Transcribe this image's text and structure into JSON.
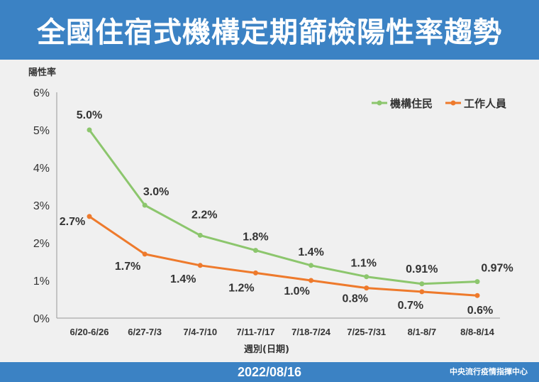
{
  "header": {
    "title": "全國住宿式機構定期篩檢陽性率趨勢"
  },
  "footer": {
    "date": "2022/08/16",
    "source": "中央流行疫情指揮中心"
  },
  "colors": {
    "header_bg": "#3b82c4",
    "residents": "#8cc66d",
    "workers": "#ee7a2c"
  },
  "chart_data": {
    "type": "line",
    "ylabel": "陽性率",
    "xlabel": "週別(日期)",
    "ylim": [
      0,
      6
    ],
    "yticks": [
      "0%",
      "1%",
      "2%",
      "3%",
      "4%",
      "5%",
      "6%"
    ],
    "categories": [
      "6/20-6/26",
      "6/27-7/3",
      "7/4-7/10",
      "7/11-7/17",
      "7/18-7/24",
      "7/25-7/31",
      "8/1-8/7",
      "8/8-8/14"
    ],
    "legend_position": "top-right",
    "grid": false,
    "series": [
      {
        "name": "機構住民",
        "color": "#8cc66d",
        "values": [
          5.0,
          3.0,
          2.2,
          1.8,
          1.4,
          1.1,
          0.91,
          0.97
        ],
        "labels": [
          "5.0%",
          "3.0%",
          "2.2%",
          "1.8%",
          "1.4%",
          "1.1%",
          "0.91%",
          "0.97%"
        ]
      },
      {
        "name": "工作人員",
        "color": "#ee7a2c",
        "values": [
          2.7,
          1.7,
          1.4,
          1.2,
          1.0,
          0.8,
          0.7,
          0.6
        ],
        "labels": [
          "2.7%",
          "1.7%",
          "1.4%",
          "1.2%",
          "1.0%",
          "0.8%",
          "0.7%",
          "0.6%"
        ]
      }
    ]
  }
}
